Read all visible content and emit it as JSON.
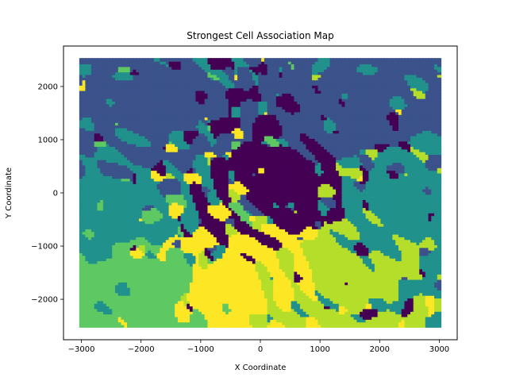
{
  "chart_data": {
    "type": "scatter",
    "title": "Strongest Cell Association Map",
    "xlabel": "X Coordinate",
    "ylabel": "Y Coordinate",
    "xlim": [
      -3300,
      3300
    ],
    "ylim": [
      -2760,
      2760
    ],
    "xticks": [
      -3000,
      -2000,
      -1000,
      0,
      1000,
      2000,
      3000
    ],
    "yticks": [
      -2000,
      -1000,
      0,
      1000,
      2000
    ],
    "xtick_labels": [
      "−3000",
      "−2000",
      "−1000",
      "0",
      "1000",
      "2000",
      "3000"
    ],
    "ytick_labels": [
      "−2000",
      "−1000",
      "0",
      "1000",
      "2000"
    ],
    "grid": false,
    "legend": "none",
    "colormap": "viridis",
    "colormap_stops": [
      "#440154",
      "#3b528b",
      "#21918c",
      "#5ec962",
      "#b5de2b",
      "#fde725"
    ],
    "point_grid": {
      "x_range": [
        -3000,
        3000
      ],
      "y_range": [
        -2500,
        2500
      ],
      "step_x": 50,
      "step_y": 50
    },
    "regions": [
      {
        "name": "north-west",
        "dominant_color": "#3b528b"
      },
      {
        "name": "north-east",
        "dominant_color": "#31688e"
      },
      {
        "name": "center",
        "dominant_color": "#440154"
      },
      {
        "name": "west",
        "dominant_color": "#21918c"
      },
      {
        "name": "south-center",
        "dominant_color": "#fde725"
      },
      {
        "name": "south-east",
        "dominant_color": "#b5de2b"
      },
      {
        "name": "south-west",
        "dominant_color": "#5ec962"
      }
    ]
  }
}
